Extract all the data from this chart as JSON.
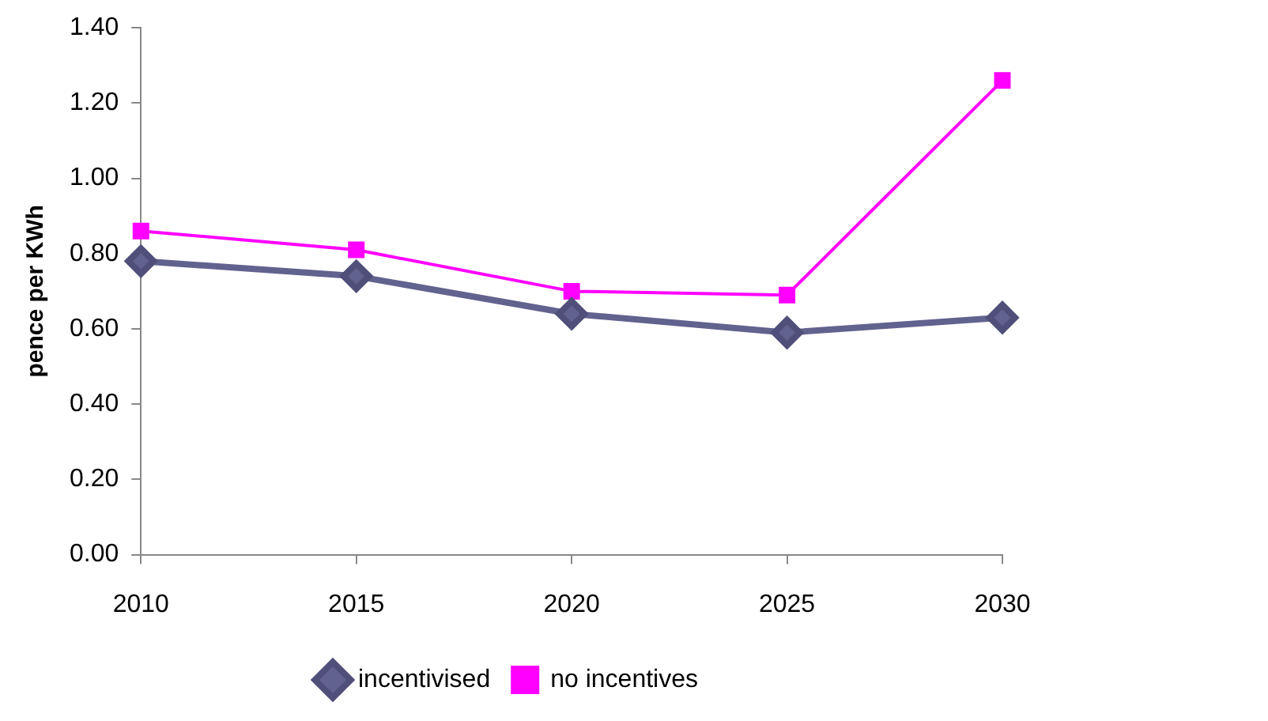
{
  "chart_data": {
    "type": "line",
    "ylabel": "pence per KWh",
    "x": [
      2010,
      2015,
      2020,
      2025,
      2030
    ],
    "series": [
      {
        "name": "incentivised",
        "color": "#62628f",
        "marker": "diamond",
        "values": [
          0.78,
          0.74,
          0.64,
          0.59,
          0.63
        ]
      },
      {
        "name": "no incentives",
        "color": "#ff00ff",
        "marker": "square",
        "values": [
          0.86,
          0.81,
          0.7,
          0.69,
          1.26
        ]
      }
    ],
    "xlim": [
      2010,
      2030
    ],
    "xticks": [
      2010,
      2015,
      2020,
      2025,
      2030
    ],
    "ylim": [
      0,
      1.4
    ],
    "yticks": [
      {
        "value": 0,
        "label": "0.00"
      },
      {
        "value": 0.2,
        "label": "0.20"
      },
      {
        "value": 0.4,
        "label": "0.40"
      },
      {
        "value": 0.6,
        "label": "0.60"
      },
      {
        "value": 0.8,
        "label": "0.80"
      },
      {
        "value": 1,
        "label": "1.00"
      },
      {
        "value": 1.2,
        "label": "1.20"
      },
      {
        "value": 1.4,
        "label": "1.40"
      }
    ],
    "grid": false,
    "legend": "bottom"
  }
}
